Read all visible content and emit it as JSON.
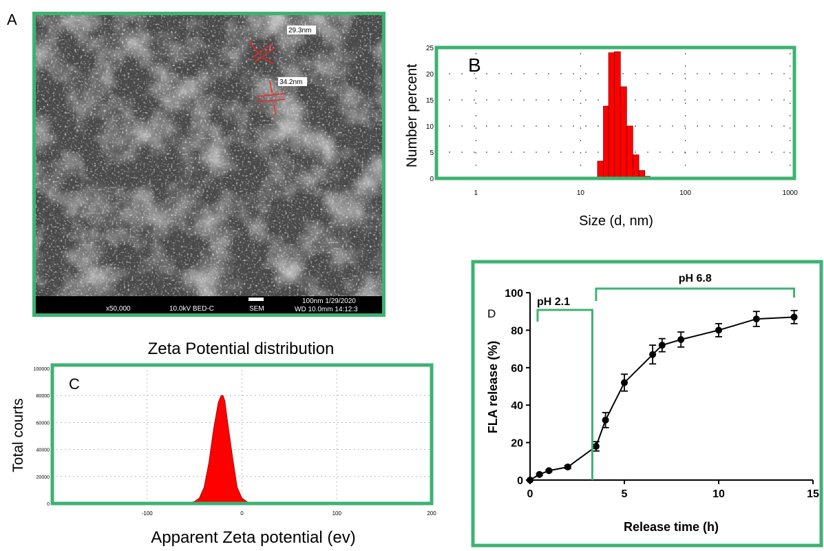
{
  "colors": {
    "frame": "#3cb371",
    "bars": "#ff0000",
    "bar_edge": "#7a0000",
    "line": "#000000",
    "sem_bg": "#4a4a4a"
  },
  "chart_data": [
    {
      "panel_label": "A",
      "type": "image",
      "annotations": [
        "29.3nm",
        "34.2nm"
      ],
      "footer": {
        "magnification": "x50,000",
        "voltage": "10.0kV BED-C",
        "mode": "SEM",
        "scale_and_date": "100nm 1/29/2020",
        "wd_and_time": "WD 10.0mm 14:12:3"
      }
    },
    {
      "panel_label": "B",
      "type": "bar",
      "title": "",
      "xlabel": "Size (d, nm)",
      "ylabel": "Number percent",
      "xscale": "log",
      "xlim": [
        0.42,
        1100
      ],
      "ylim": [
        0,
        25
      ],
      "xticks": [
        1,
        10,
        100,
        1000
      ],
      "xtick_labels": [
        "1",
        "10",
        "100",
        "1000"
      ],
      "yticks": [
        0,
        5,
        10,
        15,
        20,
        25
      ],
      "ytick_labels": [
        "0",
        "5",
        "10",
        "15",
        "20",
        "25"
      ],
      "grid": true,
      "bins": [
        {
          "x0": 14.5,
          "x1": 16.5,
          "y": 3.3
        },
        {
          "x0": 16.5,
          "x1": 18.5,
          "y": 13.8
        },
        {
          "x0": 18.5,
          "x1": 21.0,
          "y": 24.0
        },
        {
          "x0": 21.0,
          "x1": 24.0,
          "y": 24.2
        },
        {
          "x0": 24.0,
          "x1": 27.5,
          "y": 17.5
        },
        {
          "x0": 27.5,
          "x1": 31.5,
          "y": 10.0
        },
        {
          "x0": 31.5,
          "x1": 36.0,
          "y": 4.5
        },
        {
          "x0": 36.0,
          "x1": 41.0,
          "y": 1.5
        },
        {
          "x0": 41.0,
          "x1": 46.0,
          "y": 0.4
        }
      ]
    },
    {
      "panel_label": "C",
      "type": "area",
      "title": "Zeta Potential distribution",
      "xlabel": "Apparent Zeta potential (ev)",
      "ylabel": "Total courts",
      "xlim": [
        -200,
        200
      ],
      "ylim": [
        0,
        100000
      ],
      "xticks": [
        -100,
        0,
        100,
        200
      ],
      "xtick_labels": [
        "-100",
        "0",
        "100",
        "200"
      ],
      "yticks": [
        0,
        20000,
        40000,
        60000,
        80000,
        100000
      ],
      "ytick_labels": [
        "0",
        "20000",
        "40000",
        "60000",
        "80000",
        "100000"
      ],
      "grid": true,
      "x": [
        -60,
        -50,
        -45,
        -40,
        -35,
        -30,
        -25,
        -22,
        -20,
        -18,
        -15,
        -10,
        -5,
        0,
        5,
        10
      ],
      "y": [
        0,
        1500,
        4000,
        12000,
        30000,
        55000,
        75000,
        80000,
        80000,
        76000,
        60000,
        35000,
        12000,
        4000,
        1500,
        0
      ]
    },
    {
      "panel_label": "D",
      "type": "line",
      "title": "",
      "xlabel": "Release time (h)",
      "ylabel": "FLA release (%)",
      "xlim": [
        0,
        15
      ],
      "ylim": [
        0,
        100
      ],
      "xticks": [
        0,
        5,
        10,
        15
      ],
      "xtick_labels": [
        "0",
        "5",
        "10",
        "15"
      ],
      "yticks": [
        0,
        20,
        40,
        60,
        80,
        100
      ],
      "ytick_labels": [
        "0",
        "20",
        "40",
        "60",
        "80",
        "100"
      ],
      "grid": false,
      "x": [
        0,
        0.5,
        1,
        2,
        3.5,
        4,
        5,
        6.5,
        7,
        8,
        10,
        12,
        14
      ],
      "y": [
        0,
        3,
        5,
        7,
        18,
        32,
        52,
        67,
        72,
        75,
        80,
        86,
        87
      ],
      "err": [
        0,
        0.5,
        0.5,
        0.8,
        2.5,
        4,
        4.5,
        5,
        3.5,
        4,
        3.5,
        4,
        3.5
      ],
      "annotations": [
        {
          "text": "pH 2.1",
          "x0": 0.4,
          "x1": 3.3
        },
        {
          "text": "pH 6.8",
          "x0": 3.5,
          "x1": 14
        }
      ]
    }
  ]
}
